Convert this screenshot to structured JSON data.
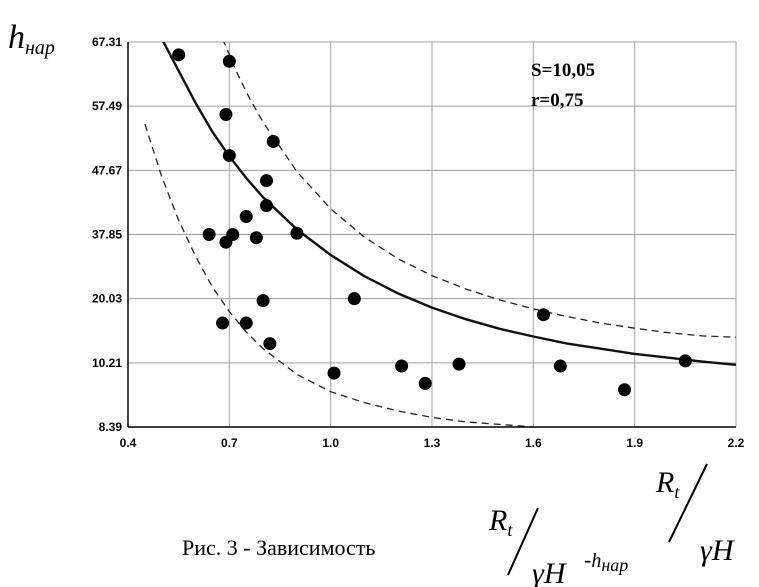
{
  "chart_data": {
    "type": "scatter",
    "xlim": [
      0.4,
      2.2
    ],
    "x_ticks": [
      "0.4",
      "0.7",
      "1.0",
      "1.3",
      "1.6",
      "1.9",
      "2.2"
    ],
    "x_tick_values": [
      0.4,
      0.7,
      1.0,
      1.3,
      1.6,
      1.9,
      2.2
    ],
    "y_ticks": [
      "8.39",
      "10.21",
      "20.03",
      "37.85",
      "47.67",
      "57.49",
      "67.31"
    ],
    "y_tick_levels": [
      0,
      1,
      2,
      3,
      4,
      5,
      6
    ],
    "grid": true,
    "stats": [
      "S=10,05",
      "r=0,75"
    ],
    "points": [
      {
        "x": 0.55,
        "level": 5.8
      },
      {
        "x": 0.7,
        "level": 5.7
      },
      {
        "x": 0.69,
        "level": 4.87
      },
      {
        "x": 0.7,
        "level": 4.23
      },
      {
        "x": 0.83,
        "level": 4.45
      },
      {
        "x": 0.81,
        "level": 3.84
      },
      {
        "x": 0.81,
        "level": 3.45
      },
      {
        "x": 0.75,
        "level": 3.28
      },
      {
        "x": 0.64,
        "level": 3.0
      },
      {
        "x": 0.71,
        "level": 3.0
      },
      {
        "x": 0.69,
        "level": 2.88
      },
      {
        "x": 0.78,
        "level": 2.95
      },
      {
        "x": 0.9,
        "level": 3.02
      },
      {
        "x": 0.8,
        "level": 1.97
      },
      {
        "x": 1.07,
        "level": 2.0
      },
      {
        "x": 0.68,
        "level": 1.62
      },
      {
        "x": 0.75,
        "level": 1.62
      },
      {
        "x": 0.82,
        "level": 1.3
      },
      {
        "x": 1.01,
        "level": 0.84
      },
      {
        "x": 1.21,
        "level": 0.95
      },
      {
        "x": 1.28,
        "level": 0.68
      },
      {
        "x": 1.38,
        "level": 0.98
      },
      {
        "x": 1.63,
        "level": 1.75
      },
      {
        "x": 1.68,
        "level": 0.95
      },
      {
        "x": 1.87,
        "level": 0.58
      },
      {
        "x": 2.05,
        "level": 1.03
      }
    ],
    "fit_curve": [
      {
        "x": 0.5,
        "level": 6.05
      },
      {
        "x": 0.55,
        "level": 5.55
      },
      {
        "x": 0.6,
        "level": 5.05
      },
      {
        "x": 0.65,
        "level": 4.6
      },
      {
        "x": 0.7,
        "level": 4.22
      },
      {
        "x": 0.75,
        "level": 3.88
      },
      {
        "x": 0.8,
        "level": 3.58
      },
      {
        "x": 0.9,
        "level": 3.08
      },
      {
        "x": 1.0,
        "level": 2.68
      },
      {
        "x": 1.1,
        "level": 2.35
      },
      {
        "x": 1.2,
        "level": 2.08
      },
      {
        "x": 1.3,
        "level": 1.86
      },
      {
        "x": 1.4,
        "level": 1.68
      },
      {
        "x": 1.5,
        "level": 1.53
      },
      {
        "x": 1.6,
        "level": 1.41
      },
      {
        "x": 1.7,
        "level": 1.3
      },
      {
        "x": 1.8,
        "level": 1.22
      },
      {
        "x": 1.9,
        "level": 1.14
      },
      {
        "x": 2.0,
        "level": 1.08
      },
      {
        "x": 2.1,
        "level": 1.02
      },
      {
        "x": 2.2,
        "level": 0.97
      }
    ],
    "upper_band": [
      {
        "x": 0.68,
        "level": 6.05
      },
      {
        "x": 0.72,
        "level": 5.55
      },
      {
        "x": 0.76,
        "level": 5.12
      },
      {
        "x": 0.8,
        "level": 4.75
      },
      {
        "x": 0.9,
        "level": 3.98
      },
      {
        "x": 1.0,
        "level": 3.4
      },
      {
        "x": 1.1,
        "level": 2.96
      },
      {
        "x": 1.2,
        "level": 2.62
      },
      {
        "x": 1.3,
        "level": 2.36
      },
      {
        "x": 1.4,
        "level": 2.15
      },
      {
        "x": 1.5,
        "level": 1.98
      },
      {
        "x": 1.6,
        "level": 1.84
      },
      {
        "x": 1.7,
        "level": 1.72
      },
      {
        "x": 1.8,
        "level": 1.62
      },
      {
        "x": 1.9,
        "level": 1.54
      },
      {
        "x": 2.0,
        "level": 1.47
      },
      {
        "x": 2.1,
        "level": 1.42
      },
      {
        "x": 2.2,
        "level": 1.4
      }
    ],
    "lower_band": [
      {
        "x": 0.45,
        "level": 4.72
      },
      {
        "x": 0.5,
        "level": 3.9
      },
      {
        "x": 0.55,
        "level": 3.22
      },
      {
        "x": 0.6,
        "level": 2.66
      },
      {
        "x": 0.65,
        "level": 2.18
      },
      {
        "x": 0.7,
        "level": 1.8
      },
      {
        "x": 0.75,
        "level": 1.48
      },
      {
        "x": 0.8,
        "level": 1.22
      },
      {
        "x": 0.9,
        "level": 0.82
      },
      {
        "x": 1.0,
        "level": 0.55
      },
      {
        "x": 1.1,
        "level": 0.38
      },
      {
        "x": 1.2,
        "level": 0.25
      },
      {
        "x": 1.3,
        "level": 0.15
      },
      {
        "x": 1.4,
        "level": 0.08
      },
      {
        "x": 1.5,
        "level": 0.04
      },
      {
        "x": 1.6,
        "level": 0.0
      }
    ]
  },
  "y_label": {
    "main": "h",
    "sub": "нар"
  },
  "x_label": {
    "numerator": "R",
    "numerator_sub": "t",
    "denominator": "γH"
  },
  "caption": {
    "prefix": "Рис. 3 - Зависимость",
    "frac_numerator": "R",
    "frac_numerator_sub": "t",
    "frac_denominator": "γH",
    "suffix_dash": "-",
    "suffix_main": "h",
    "suffix_sub": "нар"
  }
}
